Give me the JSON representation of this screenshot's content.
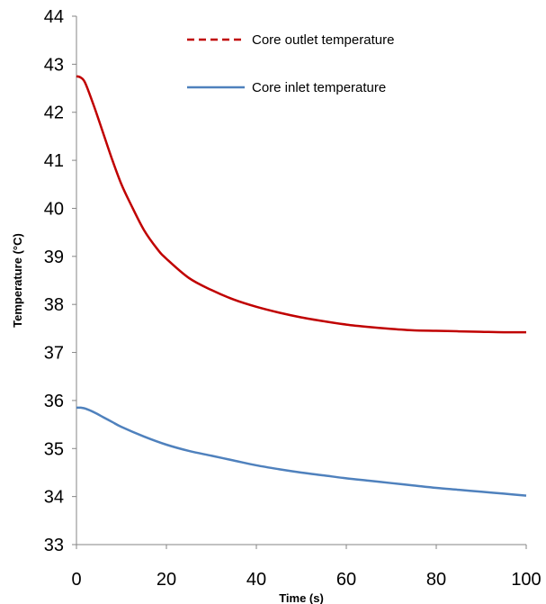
{
  "chart_data": {
    "type": "line",
    "title": "",
    "xlabel": "Time (s)",
    "ylabel": "Temperature (°C)",
    "xlim": [
      0,
      100
    ],
    "ylim": [
      33,
      44
    ],
    "xticks": [
      0,
      20,
      40,
      60,
      80,
      100
    ],
    "yticks": [
      33,
      34,
      35,
      36,
      37,
      38,
      39,
      40,
      41,
      42,
      43,
      44
    ],
    "grid": false,
    "legend_position": "top-right",
    "series": [
      {
        "name": "Core outlet temperature",
        "color": "#c00000",
        "dash": "dashed-in-legend",
        "x": [
          0,
          1,
          2,
          4,
          6,
          8,
          10,
          12,
          15,
          18,
          20,
          25,
          30,
          35,
          40,
          45,
          50,
          55,
          60,
          65,
          70,
          75,
          80,
          85,
          90,
          95,
          100
        ],
        "y": [
          42.75,
          42.72,
          42.6,
          42.1,
          41.55,
          41.0,
          40.5,
          40.1,
          39.55,
          39.15,
          38.95,
          38.55,
          38.3,
          38.1,
          37.95,
          37.83,
          37.73,
          37.65,
          37.58,
          37.53,
          37.49,
          37.46,
          37.45,
          37.44,
          37.43,
          37.42,
          37.42
        ]
      },
      {
        "name": "Core inlet temperature",
        "color": "#4f81bd",
        "dash": "solid",
        "x": [
          0,
          1,
          2,
          4,
          6,
          8,
          10,
          15,
          20,
          25,
          30,
          35,
          40,
          45,
          50,
          55,
          60,
          65,
          70,
          75,
          80,
          85,
          90,
          95,
          100
        ],
        "y": [
          35.85,
          35.85,
          35.83,
          35.75,
          35.65,
          35.55,
          35.45,
          35.25,
          35.08,
          34.95,
          34.85,
          34.75,
          34.65,
          34.57,
          34.5,
          34.44,
          34.38,
          34.33,
          34.28,
          34.23,
          34.18,
          34.14,
          34.1,
          34.06,
          34.02
        ]
      }
    ]
  }
}
